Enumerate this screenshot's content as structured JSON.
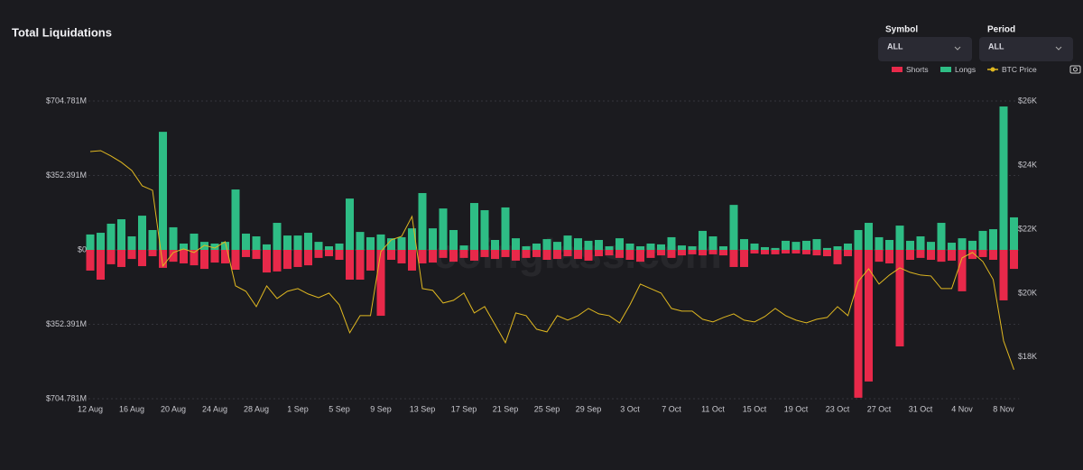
{
  "header": {
    "title": "Total Liquidations"
  },
  "controls": [
    {
      "label": "Symbol",
      "value": "ALL"
    },
    {
      "label": "Period",
      "value": "ALL"
    }
  ],
  "watermark": "coinglass.com",
  "chart_data": {
    "type": "bar",
    "categories": [
      "12 Aug",
      null,
      null,
      null,
      "16 Aug",
      null,
      null,
      null,
      "20 Aug",
      null,
      null,
      null,
      "24 Aug",
      null,
      null,
      null,
      "28 Aug",
      null,
      null,
      null,
      "1 Sep",
      null,
      null,
      null,
      "5 Sep",
      null,
      null,
      null,
      "9 Sep",
      null,
      null,
      null,
      "13 Sep",
      null,
      null,
      null,
      "17 Sep",
      null,
      null,
      null,
      "21 Sep",
      null,
      null,
      null,
      "25 Sep",
      null,
      null,
      null,
      "29 Sep",
      null,
      null,
      null,
      "3 Oct",
      null,
      null,
      null,
      "7 Oct",
      null,
      null,
      null,
      "11 Oct",
      null,
      null,
      null,
      "15 Oct",
      null,
      null,
      null,
      "19 Oct",
      null,
      null,
      null,
      "23 Oct",
      null,
      null,
      null,
      "27 Oct",
      null,
      null,
      null,
      "31 Oct",
      null,
      null,
      null,
      "4 Nov",
      null,
      null,
      null,
      "8 Nov",
      null
    ],
    "series": [
      {
        "name": "Shorts",
        "color": "#e8294a",
        "values": [
          -98,
          -141,
          -68,
          -81,
          -43,
          -77,
          -30,
          -85,
          -56,
          -64,
          -73,
          -90,
          -60,
          -64,
          -94,
          -34,
          -43,
          -107,
          -102,
          -90,
          -81,
          -73,
          -38,
          -30,
          -47,
          -141,
          -141,
          -98,
          -312,
          -47,
          -64,
          -98,
          -64,
          -60,
          -38,
          -56,
          -38,
          -51,
          -34,
          -43,
          -34,
          -51,
          -38,
          -34,
          -47,
          -43,
          -30,
          -43,
          -51,
          -30,
          -26,
          -38,
          -47,
          -56,
          -38,
          -26,
          -38,
          -26,
          -21,
          -26,
          -21,
          -26,
          -81,
          -81,
          -17,
          -21,
          -21,
          -17,
          -17,
          -21,
          -26,
          -30,
          -68,
          -30,
          -700,
          -623,
          -56,
          -64,
          -457,
          -47,
          -38,
          -47,
          -56,
          -51,
          -196,
          -43,
          -34,
          -47,
          -239,
          -90
        ]
      },
      {
        "name": "Longs",
        "color": "#2ebd85",
        "values": [
          73,
          81,
          124,
          145,
          64,
          162,
          94,
          559,
          107,
          30,
          77,
          38,
          30,
          38,
          286,
          77,
          64,
          26,
          128,
          68,
          68,
          81,
          38,
          17,
          30,
          243,
          85,
          60,
          73,
          55,
          60,
          102,
          269,
          102,
          196,
          94,
          21,
          222,
          188,
          47,
          201,
          55,
          17,
          30,
          51,
          38,
          68,
          55,
          43,
          47,
          17,
          55,
          30,
          17,
          30,
          26,
          60,
          21,
          17,
          90,
          64,
          17,
          213,
          51,
          30,
          13,
          9,
          43,
          38,
          43,
          51,
          9,
          17,
          30,
          94,
          128,
          60,
          47,
          115,
          43,
          64,
          38,
          128,
          34,
          55,
          43,
          90,
          98,
          679,
          154
        ]
      },
      {
        "name": "BTC Price",
        "type": "line",
        "axis": "y2",
        "color": "#e0b820",
        "values": [
          24422,
          24451,
          24282,
          24085,
          23831,
          23352,
          23211,
          20845,
          21268,
          21380,
          21268,
          21493,
          21408,
          21606,
          20226,
          20057,
          19578,
          20226,
          19831,
          20057,
          20141,
          19972,
          19859,
          20000,
          19634,
          18760,
          19295,
          19295,
          21296,
          21662,
          21775,
          22394,
          20141,
          20085,
          19690,
          19775,
          20000,
          19380,
          19578,
          19014,
          18451,
          19380,
          19295,
          18873,
          18789,
          19295,
          19155,
          19295,
          19521,
          19352,
          19295,
          19070,
          19634,
          20282,
          20141,
          20000,
          19521,
          19437,
          19437,
          19183,
          19099,
          19239,
          19352,
          19155,
          19099,
          19268,
          19521,
          19295,
          19155,
          19070,
          19183,
          19239,
          19578,
          19295,
          20366,
          20760,
          20282,
          20563,
          20788,
          20648,
          20563,
          20535,
          20141,
          20141,
          21099,
          21268,
          20986,
          20422,
          18507,
          17606
        ]
      }
    ],
    "ylim": [
      -704.781,
      704.781
    ],
    "yticks": [
      {
        "value": -704.781,
        "label": "$704.781M"
      },
      {
        "value": -352.391,
        "label": "$352.391M"
      },
      {
        "value": 0,
        "label": "$0"
      },
      {
        "value": 352.391,
        "label": "$352.391M"
      },
      {
        "value": 704.781,
        "label": "$704.781M"
      }
    ],
    "y2lim": [
      16700,
      26000
    ],
    "y2ticks": [
      {
        "value": 18000,
        "label": "$18K"
      },
      {
        "value": 20000,
        "label": "$20K"
      },
      {
        "value": 22000,
        "label": "$22K"
      },
      {
        "value": 24000,
        "label": "$24K"
      },
      {
        "value": 26000,
        "label": "$26K"
      }
    ],
    "grid": true
  }
}
